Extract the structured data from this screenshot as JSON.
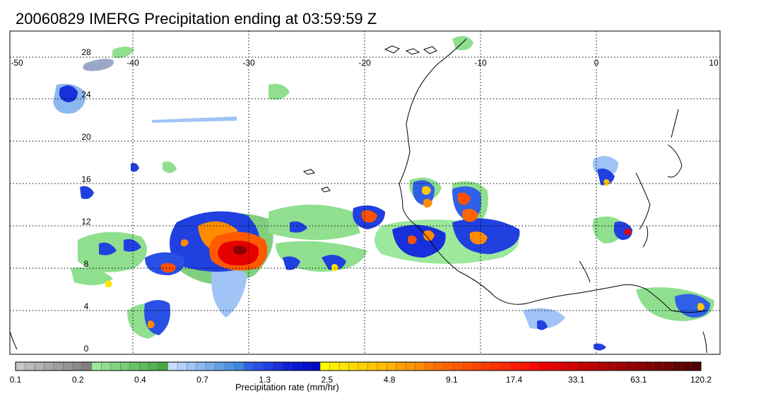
{
  "title": "20060829 IMERG Precipitation ending at 03:59:59 Z",
  "map": {
    "lon_ticks": [
      "-50",
      "-40",
      "-30",
      "-20",
      "-10",
      "0",
      "10"
    ],
    "lat_ticks": [
      "28",
      "24",
      "20",
      "16",
      "12",
      "8",
      "4",
      "0"
    ],
    "lon_range": [
      -50,
      10
    ],
    "lat_range": [
      -0.5,
      29.5
    ],
    "grid": true
  },
  "colorbar": {
    "label": "Precipitation rate (mm/hr)",
    "tick_labels": [
      "0.1",
      "0.2",
      "0.4",
      "0.7",
      "1.3",
      "2.5",
      "4.8",
      "9.1",
      "17.4",
      "33.1",
      "63.1",
      "120.2"
    ],
    "colors": [
      "#c8c8c8",
      "#bcbcbc",
      "#b2b2b2",
      "#a8a8a8",
      "#9e9e9e",
      "#949494",
      "#8a8a8a",
      "#808080",
      "#9ce89c",
      "#8fdf8f",
      "#82d682",
      "#76cd76",
      "#69c469",
      "#5dbb5d",
      "#50b250",
      "#45a845",
      "#c8dcff",
      "#b4d0fa",
      "#a0c4f5",
      "#8cb8f0",
      "#78acec",
      "#64a0e8",
      "#5094e4",
      "#3c88e0",
      "#3060e8",
      "#2850e4",
      "#2040e0",
      "#1830dc",
      "#1020d8",
      "#0818d4",
      "#0010cc",
      "#0008c0",
      "#ffff00",
      "#fff000",
      "#ffe600",
      "#ffdc00",
      "#ffd200",
      "#ffc800",
      "#ffbe00",
      "#ffb400",
      "#ffa000",
      "#ff9600",
      "#ff8c00",
      "#ff7800",
      "#ff6e00",
      "#ff6400",
      "#ff5a00",
      "#ff5000",
      "#ff4600",
      "#ff3c00",
      "#ff3200",
      "#ff2800",
      "#ff1e00",
      "#ff1400",
      "#fa0a00",
      "#f00000",
      "#e60000",
      "#dc0000",
      "#d20000",
      "#c80000",
      "#be0000",
      "#b40000",
      "#aa0000",
      "#a00000",
      "#960000",
      "#8c0000",
      "#820000",
      "#780000",
      "#6e0000",
      "#640000",
      "#5a0000",
      "#500000"
    ],
    "tick_every": 8
  },
  "legend_colors": {
    "gray": "#a0a0a0",
    "green": "#6cc96c",
    "lightblue": "#8cc0f0",
    "blue": "#2040e0",
    "yellow": "#ffe000",
    "orange": "#ff8a00",
    "red": "#e81000",
    "darkred": "#8c0000",
    "coast": "#000000"
  }
}
